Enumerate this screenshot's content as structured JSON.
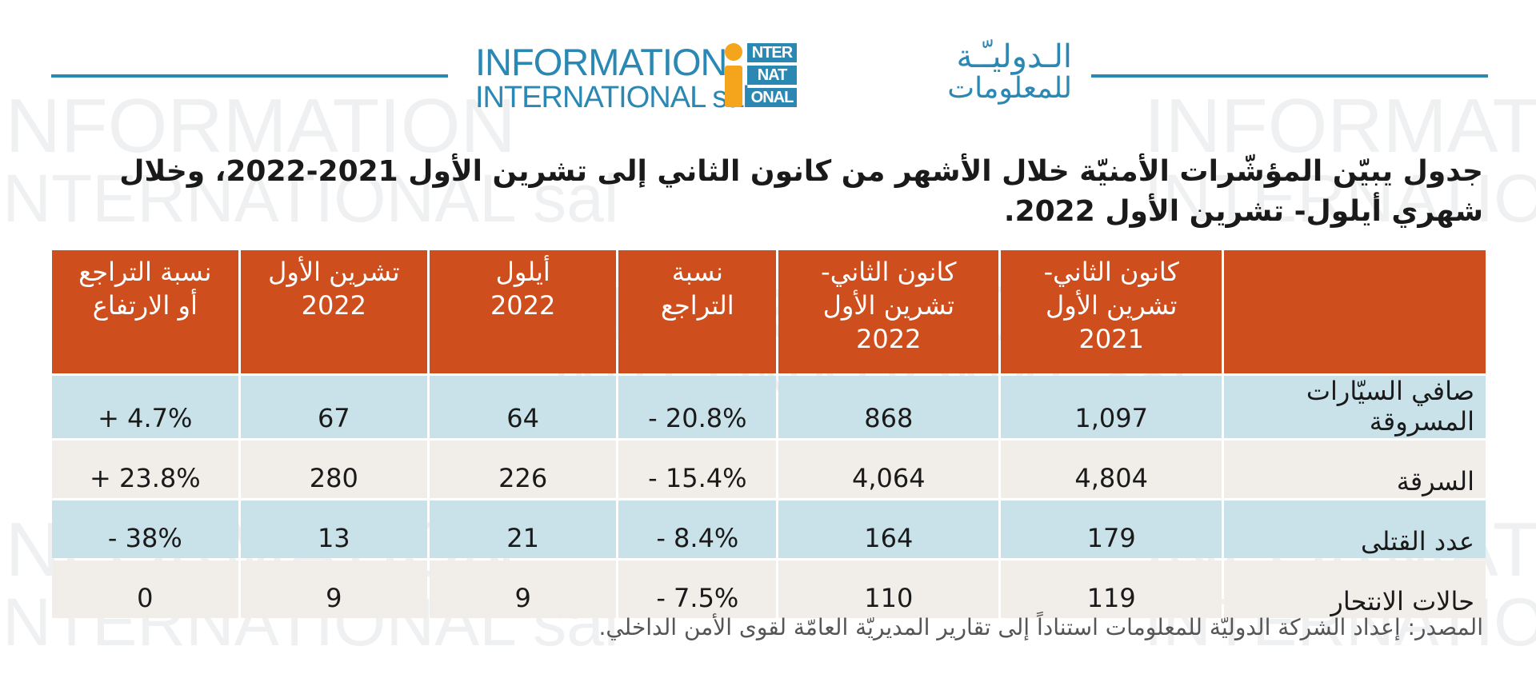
{
  "header": {
    "logo_en_line1": "INFORMATION",
    "logo_en_line2": "INTERNATIONAL sal",
    "logo_mark_lines": [
      "NTER",
      "NAT",
      "ONAL"
    ],
    "logo_ar_line1": "الـدوليـّـة",
    "logo_ar_line2": "للمعلومات"
  },
  "title": "جدول يبيّن المؤشّرات الأمنيّة خلال الأشهر من كانون الثاني إلى تشرين الأول 2021-2022، وخلال شهري أيلول- تشرين الأول 2022.",
  "table": {
    "headers": [
      "",
      "كانون الثاني-\nتشرين الأول\n2021",
      "كانون الثاني-\nتشرين الأول\n2022",
      "نسبة\nالتراجع",
      "أيلول\n2022",
      "تشرين الأول\n2022",
      "نسبة التراجع\nأو الارتفاع"
    ],
    "rows": [
      {
        "label": "صافي السيّارات المسروقة",
        "cells": [
          "1,097",
          "868",
          "- 20.8%",
          "64",
          "67",
          "+ 4.7%"
        ]
      },
      {
        "label": "السرقة",
        "cells": [
          "4,804",
          "4,064",
          "- 15.4%",
          "226",
          "280",
          "+ 23.8%"
        ]
      },
      {
        "label": "عدد القتلى",
        "cells": [
          "179",
          "164",
          "- 8.4%",
          "21",
          "13",
          "- 38%"
        ]
      },
      {
        "label": "حالات الانتحار",
        "cells": [
          "119",
          "110",
          "- 7.5%",
          "9",
          "9",
          "0"
        ]
      }
    ]
  },
  "source": "المصدر: إعداد الشركة الدوليّة للمعلومات استناداً إلى تقارير المديريّة العامّة لقوى الأمن الداخلي.",
  "colors": {
    "header_bg": "#cf4e1d",
    "row_blue": "#c9e2ea",
    "row_beige": "#f1eeea",
    "brand_blue": "#2a88b3",
    "brand_orange": "#f4a51c"
  }
}
